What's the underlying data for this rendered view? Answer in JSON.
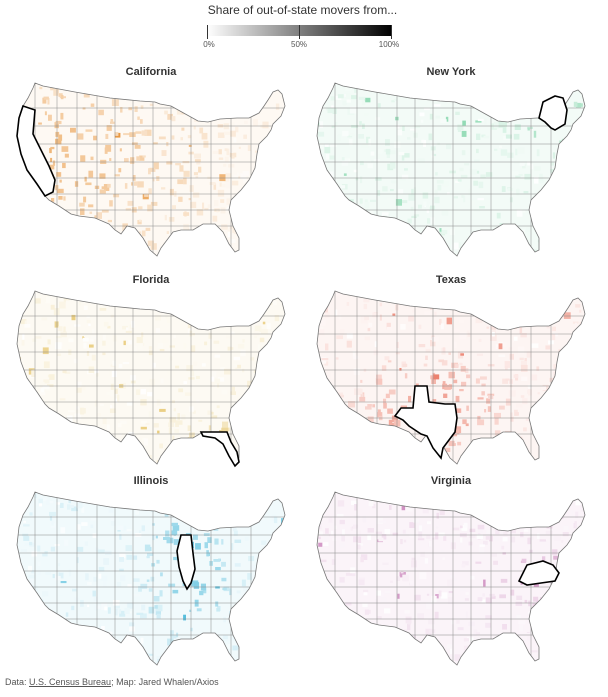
{
  "legend": {
    "title": "Share of out-of-state movers from...",
    "ticks": [
      "0%",
      "50%",
      "100%"
    ],
    "gradient_from": "#ffffff",
    "gradient_to": "#000000"
  },
  "panels": [
    {
      "name": "California",
      "color": "#e8943a",
      "home": "ca"
    },
    {
      "name": "New York",
      "color": "#3dbf7c",
      "home": "ny"
    },
    {
      "name": "Florida",
      "color": "#dcae2f",
      "home": "fl"
    },
    {
      "name": "Texas",
      "color": "#e5543a",
      "home": "tx"
    },
    {
      "name": "Illinois",
      "color": "#1aa7d0",
      "home": "il"
    },
    {
      "name": "Virginia",
      "color": "#b44e9e",
      "home": "va"
    }
  ],
  "footer": {
    "prefix": "Data: ",
    "source": "U.S. Census Bureau",
    "suffix": "; Map: Jared Whalen/Axios"
  }
}
